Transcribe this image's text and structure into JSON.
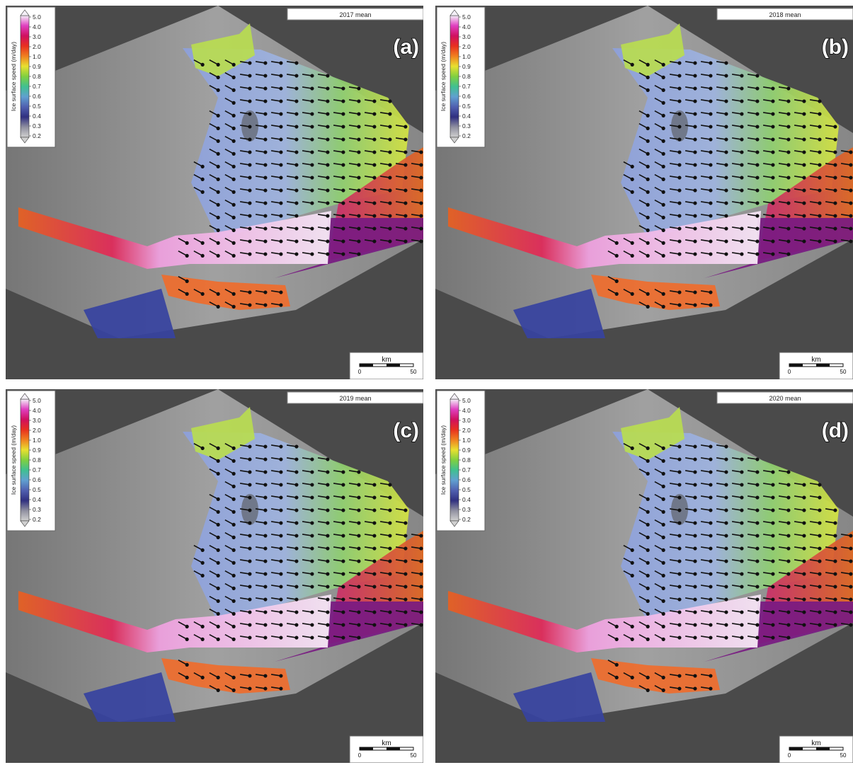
{
  "panels": [
    {
      "title": "2017 mean",
      "label": "(a)"
    },
    {
      "title": "2018 mean",
      "label": "(b)"
    },
    {
      "title": "2019 mean",
      "label": "(c)"
    },
    {
      "title": "2020 mean",
      "label": "(d)"
    }
  ],
  "colorbar": {
    "label": "Ice surface speed (m/day)",
    "ticks": [
      "5.0",
      "4.0",
      "3.0",
      "2.0",
      "1.0",
      "0.9",
      "0.8",
      "0.7",
      "0.6",
      "0.5",
      "0.4",
      "0.3",
      "0.2"
    ]
  },
  "scalebar": {
    "unit": "km",
    "start": "0",
    "end": "50"
  }
}
